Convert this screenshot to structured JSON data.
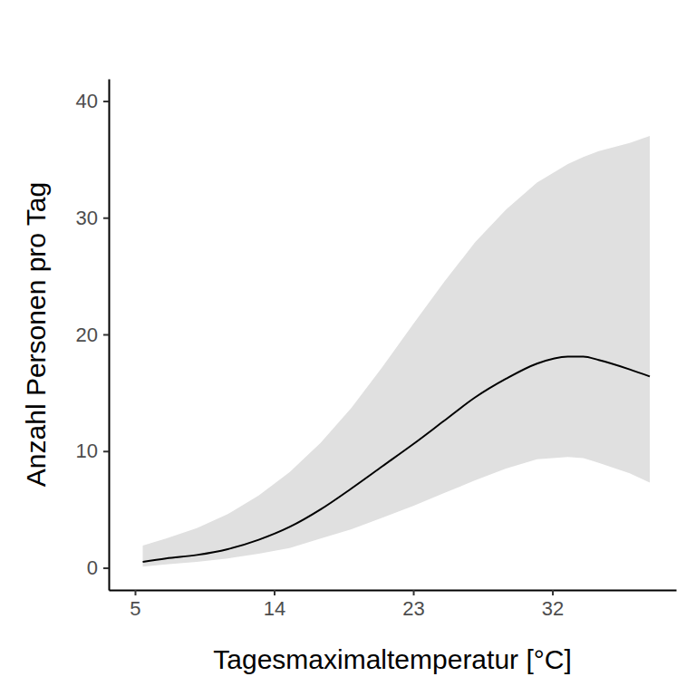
{
  "chart_data": {
    "type": "line",
    "xlabel": "Tagesmaximaltemperatur [°C]",
    "ylabel": "Anzahl Personen pro Tag",
    "x": [
      5.5,
      7,
      9,
      11,
      13,
      15,
      17,
      19,
      21,
      23,
      25,
      27,
      29,
      31,
      33,
      34,
      35,
      37,
      38.3
    ],
    "series": [
      {
        "color": "#000000",
        "values": [
          0.5,
          0.8,
          1.1,
          1.6,
          2.4,
          3.5,
          5.0,
          6.8,
          8.7,
          10.6,
          12.6,
          14.6,
          16.2,
          17.5,
          18.1,
          18.1,
          17.8,
          17.0,
          16.4
        ],
        "lower": [
          0.1,
          0.3,
          0.5,
          0.8,
          1.2,
          1.7,
          2.5,
          3.3,
          4.3,
          5.3,
          6.4,
          7.5,
          8.5,
          9.3,
          9.5,
          9.4,
          9.0,
          8.1,
          7.3
        ],
        "upper": [
          1.9,
          2.5,
          3.4,
          4.6,
          6.2,
          8.2,
          10.7,
          13.7,
          17.2,
          20.9,
          24.5,
          27.9,
          30.7,
          33.0,
          34.6,
          35.2,
          35.7,
          36.4,
          37.0
        ]
      }
    ],
    "xlim": [
      3.3,
      40
    ],
    "ylim": [
      -1.9,
      41.9
    ],
    "xticks": [
      5,
      14,
      23,
      32
    ],
    "yticks": [
      0,
      10,
      20,
      30,
      40
    ]
  }
}
